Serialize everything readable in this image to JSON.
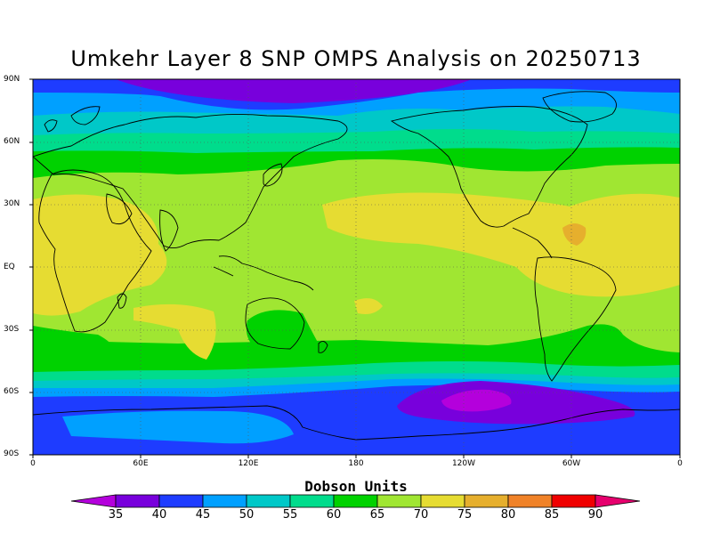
{
  "title": "Umkehr Layer 8 SNP OMPS Analysis on 20250713",
  "map": {
    "lat_labels": [
      "90N",
      "60N",
      "30N",
      "EQ",
      "30S",
      "60S",
      "90S"
    ],
    "lon_labels": [
      "0",
      "60E",
      "120E",
      "180",
      "120W",
      "60W",
      "0"
    ],
    "grid": "dotted",
    "land_outline_color": "#000000"
  },
  "colorbar": {
    "title": "Dobson Units",
    "levels": [
      "35",
      "40",
      "45",
      "50",
      "55",
      "60",
      "65",
      "70",
      "75",
      "80",
      "85",
      "90"
    ],
    "colors": [
      "#b400dc",
      "#7800dc",
      "#1e3cff",
      "#00a0ff",
      "#00c8c8",
      "#00dc8c",
      "#00d200",
      "#a0e632",
      "#e6dc32",
      "#e6af2d",
      "#f08228",
      "#f00000",
      "#e6006e"
    ]
  }
}
